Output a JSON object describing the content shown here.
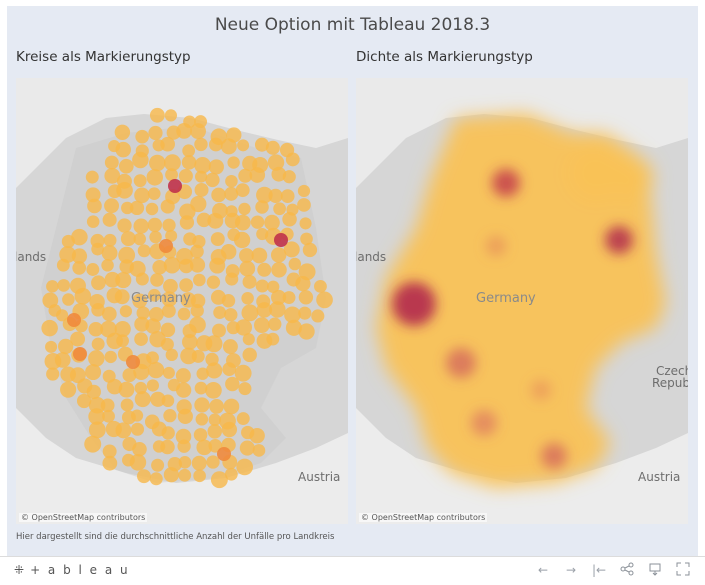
{
  "dashboard": {
    "title": "Neue Option mit Tableau 2018.3",
    "caption": "Hier dargestellt sind die durchschnittliche Anzahl der Unfälle pro Landkreis"
  },
  "sheets": [
    {
      "title": "Kreise als Markierungstyp",
      "labels": {
        "country": "Germany",
        "left": "lands",
        "czech1": "",
        "czech2": "",
        "austria": "Austria"
      },
      "attribution": "© OpenStreetMap contributors"
    },
    {
      "title": "Dichte als Markierungstyp",
      "labels": {
        "country": "Germany",
        "left": "lands",
        "czech1": "Czech",
        "czech2": "Republic",
        "austria": "Austria"
      },
      "attribution": "© OpenStreetMap contributors"
    }
  ],
  "toolbar": {
    "logo_text": "+ a b l e a u",
    "undo": "←",
    "redo": "→",
    "revert": "|←",
    "share": "share",
    "download": "download",
    "fullscreen": "fullscreen"
  },
  "colors": {
    "circle_low": "#f7b84a",
    "circle_mid": "#f08a3c",
    "circle_high": "#c0324a",
    "density_base": "#f9c257",
    "density_hot": "#b2284c"
  }
}
